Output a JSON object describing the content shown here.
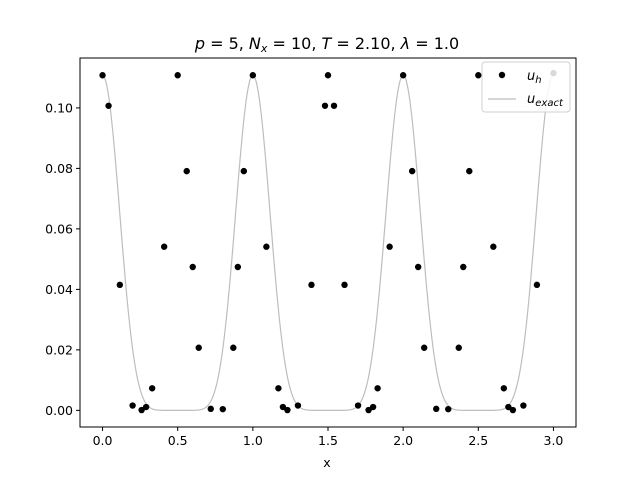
{
  "chart_data": {
    "type": "scatter",
    "title": "p = 5, N_x = 10, T = 2.10, λ = 1.0",
    "title_parts": {
      "p_var": "p",
      "p_val": " = 5, ",
      "nx_var": "N",
      "nx_sub": "x",
      "nx_val": " = 10, ",
      "t_var": "T",
      "t_val": " = 2.10, ",
      "lambda_var": "λ",
      "lambda_val": " = 1.0"
    },
    "xlabel": "x",
    "ylabel": "",
    "xlim": [
      -0.15,
      3.15
    ],
    "ylim": [
      -0.0055,
      0.1165
    ],
    "xticks": [
      "0.0",
      "0.5",
      "1.0",
      "1.5",
      "2.0",
      "2.5",
      "3.0"
    ],
    "xtick_values": [
      0.0,
      0.5,
      1.0,
      1.5,
      2.0,
      2.5,
      3.0
    ],
    "yticks": [
      "0.00",
      "0.02",
      "0.04",
      "0.06",
      "0.08",
      "0.10"
    ],
    "ytick_values": [
      0.0,
      0.02,
      0.04,
      0.06,
      0.08,
      0.1
    ],
    "grid": false,
    "legend_position": "upper-right",
    "series": [
      {
        "name": "u_h",
        "legend_var": "u",
        "legend_sub": "h",
        "kind": "scatter",
        "color": "#000000",
        "points": [
          [
            0.0,
            0.1108
          ],
          [
            0.04,
            0.1007
          ],
          [
            0.115,
            0.0415
          ],
          [
            0.2,
            0.0016
          ],
          [
            0.26,
            0.0001
          ],
          [
            0.29,
            0.0011
          ],
          [
            0.33,
            0.0073
          ],
          [
            0.41,
            0.0541
          ],
          [
            0.5,
            0.1108
          ],
          [
            0.56,
            0.0791
          ],
          [
            0.6,
            0.0474
          ],
          [
            0.64,
            0.0207
          ],
          [
            0.72,
            0.0005
          ],
          [
            0.8,
            0.0004
          ],
          [
            0.87,
            0.0207
          ],
          [
            0.9,
            0.0474
          ],
          [
            0.94,
            0.0791
          ],
          [
            1.0,
            0.1108
          ],
          [
            1.09,
            0.0541
          ],
          [
            1.17,
            0.0073
          ],
          [
            1.2,
            0.0011
          ],
          [
            1.23,
            0.0001
          ],
          [
            1.3,
            0.0016
          ],
          [
            1.39,
            0.0415
          ],
          [
            1.48,
            0.1007
          ],
          [
            1.5,
            0.1108
          ],
          [
            1.54,
            0.1007
          ],
          [
            1.61,
            0.0415
          ],
          [
            1.7,
            0.0016
          ],
          [
            1.77,
            0.0001
          ],
          [
            1.8,
            0.0011
          ],
          [
            1.83,
            0.0073
          ],
          [
            1.91,
            0.0541
          ],
          [
            2.0,
            0.1108
          ],
          [
            2.06,
            0.0791
          ],
          [
            2.1,
            0.0474
          ],
          [
            2.14,
            0.0207
          ],
          [
            2.22,
            0.0005
          ],
          [
            2.3,
            0.0004
          ],
          [
            2.37,
            0.0207
          ],
          [
            2.4,
            0.0474
          ],
          [
            2.44,
            0.0791
          ],
          [
            2.5,
            0.1108
          ],
          [
            2.6,
            0.0541
          ],
          [
            2.67,
            0.0073
          ],
          [
            2.7,
            0.0011
          ],
          [
            2.73,
            0.0001
          ],
          [
            2.8,
            0.0016
          ],
          [
            2.89,
            0.0415
          ],
          [
            3.0,
            0.1115
          ]
        ]
      },
      {
        "name": "u_exact",
        "legend_var": "u",
        "legend_sub": "exact",
        "kind": "line",
        "color": "#bdbdbd",
        "formula": "0.1108 * cos(pi * x)^8 (periodic, period 0.5 in x)"
      }
    ]
  }
}
